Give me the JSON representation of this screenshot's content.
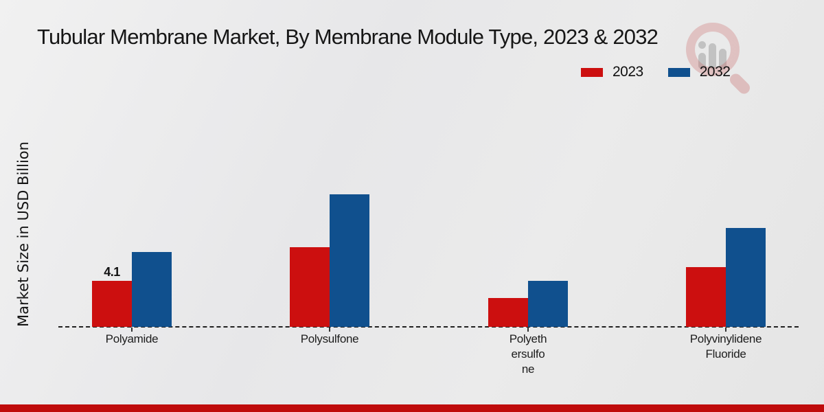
{
  "title": "Tubular Membrane Market, By Membrane Module Type, 2023 & 2032",
  "y_axis_label": "Market Size in USD Billion",
  "legend": {
    "position": "top-right",
    "items": [
      {
        "label": "2023",
        "color": "#cc0f0f"
      },
      {
        "label": "2032",
        "color": "#10508e"
      }
    ]
  },
  "watermark": "market-research-future-logo",
  "footer": {
    "band_color": "#bf0b0b"
  },
  "chart_data": {
    "type": "bar",
    "title": "Tubular Membrane Market, By Membrane Module Type, 2023 & 2032",
    "xlabel": "",
    "ylabel": "Market Size in USD Billion",
    "ylim": [
      0,
      12
    ],
    "grid": false,
    "baseline_style": "dashed",
    "legend_position": "top-right",
    "categories": [
      "Polyamide",
      "Polysulfone",
      "Polyethersulfone",
      "Polyvinylidene Fluoride"
    ],
    "category_display_lines": [
      [
        "Polyamide"
      ],
      [
        "Polysulfone"
      ],
      [
        "Polyeth",
        "ersulfo",
        "ne"
      ],
      [
        "Polyvinylidene",
        "Fluoride"
      ]
    ],
    "series": [
      {
        "name": "2023",
        "color": "#cc0f0f",
        "values": [
          4.1,
          7.1,
          2.6,
          5.3
        ]
      },
      {
        "name": "2032",
        "color": "#10508e",
        "values": [
          6.7,
          11.8,
          4.1,
          8.8
        ]
      }
    ],
    "visible_value_labels": [
      {
        "category_index": 0,
        "series_index": 0,
        "text": "4.1"
      }
    ]
  }
}
